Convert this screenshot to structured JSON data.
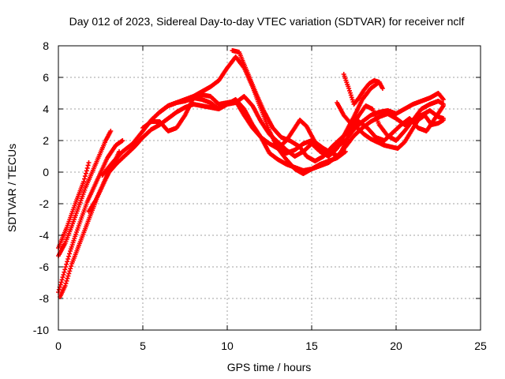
{
  "chart_data": {
    "type": "scatter",
    "title": "Day 012 of 2023, Sidereal Day-to-day VTEC variation (SDTVAR) for receiver nclf",
    "xlabel": "GPS time / hours",
    "ylabel": "SDTVAR / TECUs",
    "xlim": [
      0,
      25
    ],
    "ylim": [
      -10,
      8
    ],
    "xticks": [
      0,
      5,
      10,
      15,
      20,
      25
    ],
    "yticks": [
      -10,
      -8,
      -6,
      -4,
      -2,
      0,
      2,
      4,
      6,
      8
    ],
    "grid": true,
    "marker": "+",
    "color": "#ff0000",
    "series": [
      {
        "name": "track-1",
        "x": [
          0.0,
          0.5,
          1.0,
          1.5,
          1.8
        ],
        "y": [
          -4.8,
          -3.5,
          -2.0,
          -0.6,
          0.6
        ]
      },
      {
        "name": "track-2",
        "x": [
          0.0,
          0.4,
          0.8,
          1.2,
          1.6,
          2.0,
          2.4,
          2.8,
          3.1
        ],
        "y": [
          -5.3,
          -4.5,
          -3.4,
          -2.2,
          -1.0,
          0.0,
          1.0,
          2.0,
          2.6
        ]
      },
      {
        "name": "track-3",
        "x": [
          0.0,
          0.3,
          0.7,
          1.2,
          1.7,
          2.3,
          2.9,
          3.4,
          3.8
        ],
        "y": [
          -7.6,
          -6.5,
          -5.0,
          -3.4,
          -1.9,
          -0.5,
          0.9,
          1.7,
          2.0
        ]
      },
      {
        "name": "track-4",
        "x": [
          0.1,
          0.4,
          0.8,
          1.3,
          1.8,
          2.3,
          2.8,
          3.3,
          3.6
        ],
        "y": [
          -7.9,
          -7.2,
          -5.8,
          -4.4,
          -3.0,
          -1.6,
          -0.4,
          0.6,
          1.3
        ]
      },
      {
        "name": "track-5",
        "x": [
          1.8,
          2.2,
          2.6,
          3.0,
          3.5,
          4.0,
          4.5,
          5.0,
          5.5,
          6.0,
          6.5,
          7.0,
          7.5,
          8.0,
          8.5,
          9.0,
          9.5,
          10.0,
          10.5,
          11.0,
          11.5,
          12.0,
          12.5,
          13.0,
          13.5,
          14.0,
          14.5,
          15.0,
          15.5,
          16.0,
          16.5,
          17.0,
          17.5,
          18.0,
          18.5,
          19.0,
          19.5,
          20.0,
          20.5,
          21.0,
          21.5,
          22.0,
          22.5,
          22.8
        ],
        "y": [
          -2.5,
          -1.8,
          -0.9,
          0.0,
          0.6,
          1.1,
          1.6,
          2.2,
          2.7,
          3.0,
          3.4,
          3.8,
          4.1,
          4.3,
          4.2,
          4.1,
          4.0,
          4.3,
          4.6,
          4.0,
          3.0,
          2.2,
          1.2,
          0.8,
          0.5,
          0.3,
          0.1,
          0.2,
          0.4,
          0.6,
          1.0,
          1.6,
          2.3,
          2.8,
          3.2,
          3.5,
          3.7,
          3.4,
          3.0,
          3.3,
          3.6,
          3.9,
          3.5,
          3.4
        ]
      },
      {
        "name": "track-6",
        "x": [
          2.6,
          3.2,
          3.8,
          4.4,
          5.0,
          5.5,
          6.0,
          6.5,
          7.0,
          7.5,
          8.0,
          8.5,
          9.0,
          9.5,
          10.0,
          10.5,
          11.0,
          11.5,
          12.0,
          12.5,
          13.0,
          13.5,
          14.0,
          14.5,
          15.0,
          15.5,
          16.0,
          16.5,
          17.0
        ],
        "y": [
          -0.2,
          0.6,
          1.3,
          1.8,
          2.6,
          3.3,
          3.8,
          4.2,
          4.4,
          4.6,
          4.8,
          5.1,
          5.4,
          5.8,
          6.6,
          7.3,
          6.6,
          5.4,
          4.0,
          2.6,
          1.5,
          0.8,
          0.2,
          -0.1,
          0.2,
          0.5,
          0.7,
          0.9,
          1.3
        ]
      },
      {
        "name": "track-7",
        "x": [
          5.0,
          5.5,
          6.0,
          6.5,
          7.0,
          7.5,
          8.0,
          8.5,
          9.0,
          9.5,
          10.0,
          10.5,
          11.0,
          11.5,
          12.0,
          12.5,
          13.0,
          13.5,
          14.0,
          14.5,
          15.0,
          15.5,
          16.0,
          16.5,
          17.0,
          17.5,
          18.0,
          18.5,
          19.0
        ],
        "y": [
          2.8,
          3.2,
          3.2,
          2.6,
          2.8,
          3.6,
          4.7,
          4.9,
          4.8,
          4.3,
          4.4,
          4.5,
          3.6,
          2.8,
          2.2,
          1.8,
          1.5,
          1.2,
          1.4,
          1.8,
          2.0,
          1.5,
          1.0,
          1.5,
          2.5,
          3.5,
          4.6,
          5.3,
          5.7
        ]
      },
      {
        "name": "track-8",
        "x": [
          6.0,
          6.5,
          7.0,
          7.5,
          8.0,
          8.5,
          9.0,
          9.5,
          10.0,
          10.5,
          11.0,
          11.5,
          12.0,
          12.5,
          13.0,
          13.5,
          14.0,
          14.5,
          15.0,
          15.5,
          16.0,
          16.5,
          17.0,
          17.5,
          18.0,
          18.5,
          19.0,
          19.5,
          20.0,
          20.5,
          21.0,
          21.5,
          22.0,
          22.5,
          22.8
        ],
        "y": [
          3.8,
          4.2,
          4.4,
          4.5,
          4.7,
          4.6,
          4.4,
          4.0,
          4.3,
          4.4,
          4.8,
          4.2,
          3.2,
          2.4,
          1.9,
          1.4,
          1.0,
          1.3,
          1.8,
          1.3,
          1.0,
          1.6,
          2.0,
          2.7,
          3.2,
          3.6,
          3.8,
          3.9,
          3.7,
          4.0,
          4.3,
          4.5,
          4.7,
          5.0,
          4.6
        ]
      },
      {
        "name": "track-9",
        "x": [
          10.3,
          10.7,
          11.2,
          11.7,
          12.2,
          12.7,
          13.2,
          13.7,
          14.0,
          14.3,
          14.7,
          15.2,
          15.7,
          16.2,
          16.8,
          17.3,
          17.8,
          18.3,
          18.8,
          19.3,
          19.8,
          20.3,
          20.8,
          21.3,
          21.8,
          22.3,
          22.8
        ],
        "y": [
          7.7,
          7.6,
          6.3,
          5.0,
          3.8,
          2.8,
          2.2,
          2.0,
          1.8,
          1.6,
          1.0,
          0.7,
          1.0,
          1.6,
          2.2,
          2.7,
          3.2,
          2.8,
          2.2,
          2.0,
          2.5,
          3.0,
          3.4,
          2.8,
          2.6,
          3.4,
          4.2
        ]
      },
      {
        "name": "track-10",
        "x": [
          13.0,
          13.5,
          14.0,
          14.3,
          14.7,
          15.2,
          15.7,
          16.2,
          16.6,
          17.0,
          17.4,
          17.8,
          18.2,
          18.6,
          19.0,
          19.5,
          20.0,
          20.5,
          21.0,
          21.5,
          22.0,
          22.5,
          22.8
        ],
        "y": [
          1.5,
          2.0,
          2.8,
          3.3,
          2.9,
          1.9,
          1.5,
          1.2,
          1.0,
          1.8,
          2.9,
          3.6,
          4.2,
          4.0,
          3.0,
          2.3,
          2.0,
          2.6,
          3.3,
          4.0,
          4.3,
          4.5,
          4.3
        ]
      },
      {
        "name": "track-11",
        "x": [
          16.5,
          16.9,
          17.3,
          17.7,
          18.1,
          18.5,
          18.9,
          19.3,
          19.7,
          20.1,
          20.5,
          20.9,
          21.3,
          21.7,
          22.1,
          22.5,
          22.8
        ],
        "y": [
          4.4,
          3.6,
          3.1,
          2.8,
          2.4,
          2.1,
          1.9,
          1.7,
          1.6,
          1.5,
          1.9,
          2.6,
          3.3,
          3.6,
          3.0,
          3.1,
          3.3
        ]
      },
      {
        "name": "track-12",
        "x": [
          16.9,
          17.2,
          17.5,
          17.8,
          18.1,
          18.4,
          18.7,
          19.0,
          19.2
        ],
        "y": [
          6.2,
          5.3,
          4.3,
          4.7,
          5.2,
          5.6,
          5.8,
          5.7,
          5.3
        ]
      }
    ]
  }
}
